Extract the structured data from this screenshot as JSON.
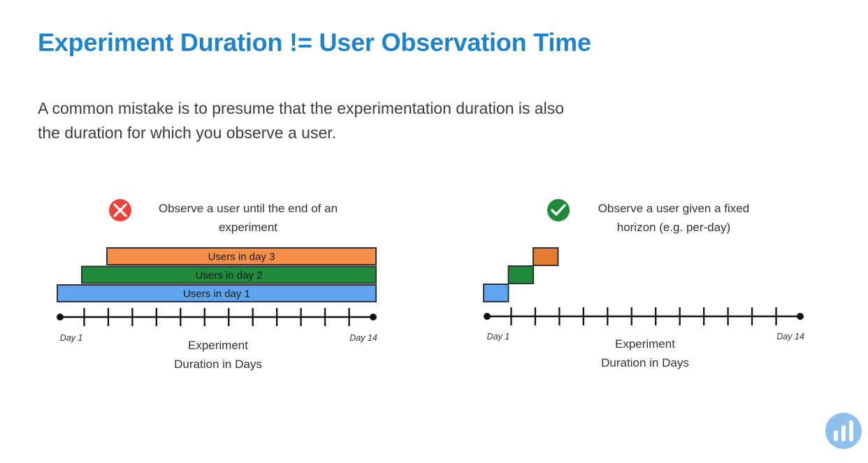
{
  "slide": {
    "title": "Experiment Duration != User Observation Time",
    "body_lines": [
      "A common mistake is to presume that the experimentation duration is also",
      "the duration for which you observe a user."
    ]
  },
  "left_panel": {
    "status_icon": "x-circle-icon",
    "status_color": "#e8443c",
    "caption_lines": [
      "Observe a user until the end of an",
      "experiment"
    ],
    "bars": [
      {
        "label": "Users in day 3",
        "start_day": 3,
        "end_day": 14,
        "color": "#f5904a"
      },
      {
        "label": "Users in day 2",
        "start_day": 2,
        "end_day": 14,
        "color": "#1e8a3c"
      },
      {
        "label": "Users in day 1",
        "start_day": 1,
        "end_day": 14,
        "color": "#5fa4ee"
      }
    ],
    "axis": {
      "start_label": "Day 1",
      "end_label": "Day 14",
      "days": 14,
      "title_lines": [
        "Experiment",
        "Duration in Days"
      ]
    }
  },
  "right_panel": {
    "status_icon": "check-circle-icon",
    "status_color": "#1e8a3c",
    "caption_lines": [
      "Observe a user given a fixed",
      "horizon (e.g. per-day)"
    ],
    "blocks": [
      {
        "day": 1,
        "color": "#5fa4ee"
      },
      {
        "day": 2,
        "color": "#1e8a3c"
      },
      {
        "day": 3,
        "color": "#e57a35"
      }
    ],
    "axis": {
      "start_label": "Day 1",
      "end_label": "Day 14",
      "days": 14,
      "title_lines": [
        "Experiment",
        "Duration in Days"
      ]
    }
  },
  "logo": {
    "icon": "bar-chart-logo-icon",
    "color": "#8fc1ec"
  }
}
